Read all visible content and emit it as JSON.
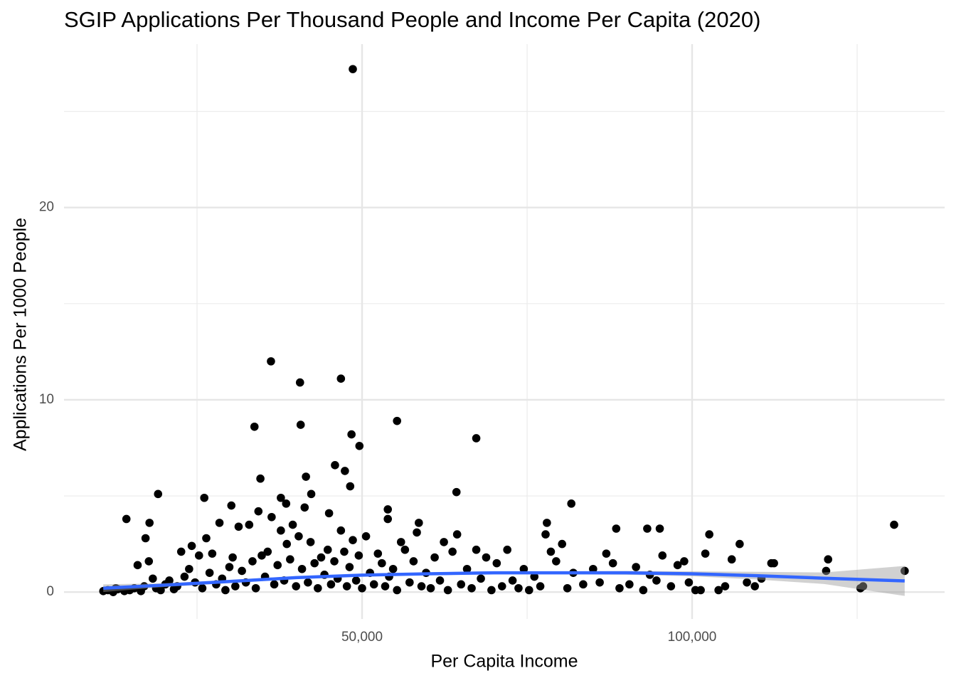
{
  "chart_data": {
    "type": "scatter",
    "title": "SGIP Applications Per Thousand People and Income Per Capita (2020)",
    "x_label": "Per Capita Income",
    "y_label": "Applications Per 1000 People",
    "xlim": [
      4850,
      138250
    ],
    "ylim": [
      -1.4,
      28.5
    ],
    "xticks": [
      {
        "value": 50000,
        "label": "50,000"
      },
      {
        "value": 100000,
        "label": "100,000"
      }
    ],
    "yticks": [
      0,
      10,
      20
    ],
    "xminor": [
      25000,
      75000,
      125000
    ],
    "yminor": [
      5,
      15,
      25
    ],
    "grid": true,
    "points": {
      "color": "#000000",
      "x": [
        48600,
        36200,
        40600,
        46800,
        33700,
        40700,
        48400,
        49600,
        55300,
        67300,
        34600,
        41500,
        45900,
        47400,
        48200,
        19100,
        26100,
        42300,
        64300,
        14300,
        17800,
        17200,
        30200,
        37700,
        38500,
        45000,
        53900,
        53900,
        58600,
        78000,
        81700,
        130600,
        132200,
        88500,
        93200,
        95100,
        102600,
        107200,
        112400,
        120600,
        120300,
        10800,
        12700,
        125500,
        101300,
        125900,
        11500,
        12300,
        13000,
        14000,
        14800,
        15500,
        16000,
        16500,
        17000,
        17700,
        18300,
        18800,
        19500,
        20200,
        20800,
        21500,
        22000,
        22600,
        23100,
        23800,
        24200,
        24700,
        25300,
        25800,
        26400,
        26900,
        27300,
        27900,
        28400,
        28800,
        29300,
        29900,
        30400,
        30800,
        31300,
        31800,
        32400,
        32900,
        33400,
        33900,
        34300,
        34800,
        35300,
        35700,
        36300,
        36700,
        37200,
        37700,
        38200,
        38600,
        39100,
        39500,
        40000,
        40400,
        40900,
        41300,
        41800,
        42200,
        42800,
        43300,
        43800,
        44300,
        44800,
        45300,
        45800,
        46300,
        46800,
        47300,
        47700,
        48100,
        48600,
        49100,
        49500,
        50000,
        50600,
        51200,
        51800,
        52400,
        53000,
        53500,
        54100,
        54700,
        55300,
        55900,
        56500,
        57200,
        57800,
        58300,
        59000,
        59700,
        60400,
        61000,
        61800,
        62400,
        63000,
        63700,
        64400,
        65000,
        65900,
        66600,
        67300,
        68000,
        68800,
        69600,
        70400,
        71200,
        72000,
        72800,
        73700,
        74500,
        75300,
        76100,
        77000,
        77800,
        78600,
        79400,
        80300,
        81100,
        82000,
        83500,
        85000,
        86000,
        87000,
        88000,
        89000,
        90500,
        91500,
        92600,
        93600,
        94600,
        95500,
        96800,
        97800,
        98800,
        99500,
        100500,
        102000,
        104000,
        105000,
        106000,
        108300,
        109500,
        110500,
        112000
      ],
      "y": [
        27.2,
        12.0,
        10.9,
        11.1,
        8.6,
        8.7,
        8.2,
        7.6,
        8.9,
        8.0,
        5.9,
        6.0,
        6.6,
        6.3,
        5.5,
        5.1,
        4.9,
        5.1,
        5.2,
        3.8,
        3.6,
        2.8,
        4.5,
        4.9,
        4.6,
        4.1,
        4.3,
        3.8,
        3.6,
        3.6,
        4.6,
        3.5,
        1.1,
        3.3,
        3.3,
        3.3,
        3.0,
        2.5,
        1.5,
        1.7,
        1.1,
        0.05,
        0.2,
        0.2,
        0.1,
        0.3,
        0.1,
        0,
        0.15,
        0.05,
        0.1,
        0.2,
        1.4,
        0.05,
        0.3,
        1.6,
        0.7,
        0.2,
        0.1,
        0.4,
        0.6,
        0.15,
        0.3,
        2.1,
        0.8,
        1.2,
        2.4,
        0.5,
        1.9,
        0.2,
        2.8,
        1.0,
        2.0,
        0.4,
        3.6,
        0.7,
        0.1,
        1.3,
        1.8,
        0.3,
        3.4,
        1.1,
        0.5,
        3.5,
        1.6,
        0.2,
        4.2,
        1.9,
        0.8,
        2.1,
        3.9,
        0.4,
        1.4,
        3.2,
        0.6,
        2.5,
        1.7,
        3.5,
        0.3,
        2.9,
        1.2,
        4.4,
        0.5,
        2.6,
        1.5,
        0.2,
        1.8,
        0.9,
        2.2,
        0.4,
        1.6,
        0.7,
        3.2,
        2.1,
        0.3,
        1.3,
        2.7,
        0.6,
        1.9,
        0.2,
        2.9,
        1.0,
        0.4,
        2.0,
        1.5,
        0.3,
        0.8,
        1.2,
        0.1,
        2.6,
        2.2,
        0.5,
        1.6,
        3.1,
        0.3,
        1.0,
        0.2,
        1.8,
        0.6,
        2.6,
        0.1,
        2.1,
        3.0,
        0.4,
        1.2,
        0.2,
        2.2,
        0.7,
        1.8,
        0.1,
        1.5,
        0.3,
        2.2,
        0.6,
        0.2,
        1.2,
        0.1,
        0.8,
        0.3,
        3.0,
        2.1,
        1.6,
        2.5,
        0.2,
        1.0,
        0.4,
        1.2,
        0.5,
        2.0,
        1.5,
        0.2,
        0.4,
        1.3,
        0.1,
        0.9,
        0.6,
        1.9,
        0.3,
        1.4,
        1.6,
        0.5,
        0.1,
        2.0,
        0.1,
        0.3,
        1.7,
        0.5,
        0.3,
        0.7,
        1.5
      ]
    },
    "smooth": {
      "color": "#3366FF",
      "band_color": "#999999",
      "x": [
        10800,
        20000,
        30000,
        40000,
        50000,
        60000,
        70000,
        80000,
        90000,
        100000,
        110000,
        120000,
        132200
      ],
      "y": [
        0.2,
        0.36,
        0.55,
        0.75,
        0.88,
        0.95,
        1.0,
        1.0,
        1.0,
        0.95,
        0.85,
        0.72,
        0.58
      ],
      "lower": [
        0.0,
        0.26,
        0.47,
        0.68,
        0.81,
        0.88,
        0.92,
        0.92,
        0.9,
        0.82,
        0.65,
        0.42,
        -0.2
      ],
      "upper": [
        0.4,
        0.46,
        0.63,
        0.82,
        0.95,
        1.02,
        1.08,
        1.08,
        1.1,
        1.08,
        1.05,
        1.02,
        1.36
      ]
    }
  }
}
